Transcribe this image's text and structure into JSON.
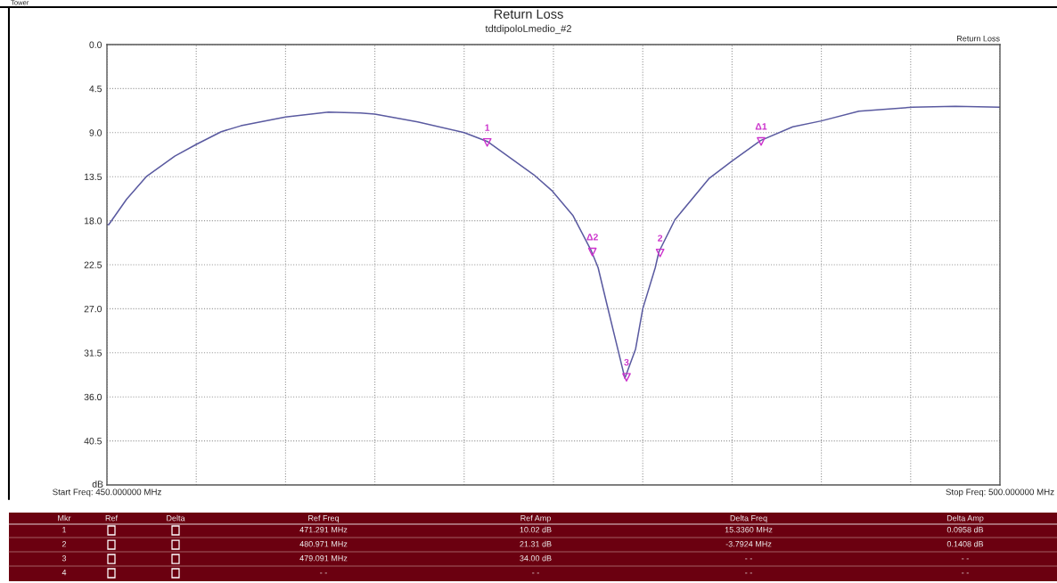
{
  "chart_data": {
    "type": "line",
    "title": "Return Loss",
    "subtitle": "tdtdipoloLmedio_#2",
    "x": [
      450,
      450.1,
      451.1,
      452.2,
      453.8,
      455,
      456.4,
      457.5,
      460,
      462.4,
      464.2,
      465,
      467.4,
      470,
      471.3,
      473.9,
      474.9,
      476.1,
      477.1,
      477.5,
      478.0,
      478.6,
      479.0,
      479.6,
      480.0,
      480.7,
      480.9,
      481.8,
      483.7,
      485.0,
      486.6,
      488.4,
      490,
      492.1,
      495.1,
      497.5,
      500
    ],
    "ylabel": "dB",
    "series": [
      {
        "type": "scatter",
        "color": "#cc33cc",
        "marker": "triangle",
        "x": [
          471.291,
          480.971,
          479.091,
          486.627,
          477.179
        ],
        "values": [
          10.0,
          21.3,
          34.0,
          9.9,
          21.2
        ]
      },
      {
        "color": "#5a5aa0",
        "values": [
          18.4,
          18.4,
          15.8,
          13.5,
          11.4,
          10.2,
          8.9,
          8.3,
          7.4,
          6.9,
          7.0,
          7.1,
          7.9,
          9.0,
          9.9,
          13.3,
          14.9,
          17.5,
          21.0,
          22.8,
          26.6,
          31.1,
          34.1,
          31.1,
          27.0,
          22.8,
          21.2,
          17.9,
          13.7,
          11.9,
          9.8,
          8.4,
          7.8,
          6.8,
          6.4,
          6.3,
          6.4
        ]
      }
    ],
    "xlim": [
      450,
      500
    ],
    "xticks": [
      {
        "value": 450,
        "label": "Start Freq: 450.000000 MHz"
      },
      {
        "value": 455,
        "label": null
      },
      {
        "value": 460,
        "label": null
      },
      {
        "value": 465,
        "label": null
      },
      {
        "value": 470,
        "label": null
      },
      {
        "value": 475,
        "label": null
      },
      {
        "value": 480,
        "label": null
      },
      {
        "value": 485,
        "label": null
      },
      {
        "value": 490,
        "label": null
      },
      {
        "value": 495,
        "label": null
      },
      {
        "value": 500,
        "label": "Stop Freq: 500.000000 MHz"
      }
    ],
    "ylim": [
      45,
      0
    ],
    "yticks": [
      {
        "value": 0,
        "label": "0.0"
      },
      4.5,
      {
        "value": 9,
        "label": "9.0"
      },
      13.5,
      {
        "value": 18,
        "label": "18.0"
      },
      22.5,
      {
        "value": 27,
        "label": "27.0"
      },
      31.5,
      {
        "value": 36,
        "label": "36.0"
      },
      40.5
    ],
    "grid": true,
    "marker": "none",
    "line_style": "solid",
    "annotations": [
      {
        "text": "1",
        "x": 471.291,
        "y": 10.02
      },
      {
        "text": "2",
        "x": 480.971,
        "y": 21.31
      },
      {
        "text": "3",
        "x": 479.091,
        "y": 34.0
      },
      {
        "text": "Δ1",
        "x": 486.627,
        "y": 9.9
      },
      {
        "text": "Δ2",
        "x": 477.179,
        "y": 21.2
      },
      "Tower",
      "Return Loss",
      "Mkr",
      "Ref",
      "Delta",
      "Ref Freq",
      "Ref Amp",
      "Delta Freq",
      "Delta Amp",
      "1",
      "471.291 MHz",
      "10.02 dB",
      "15.3360 MHz",
      "0.0958 dB",
      "2",
      "480.971 MHz",
      "21.31 dB",
      "-3.7924 MHz",
      "0.1408 dB",
      "3",
      "479.091 MHz",
      "34.00 dB",
      "- -",
      "- -",
      "4",
      "- -",
      "- -",
      "- -",
      "- -"
    ]
  }
}
